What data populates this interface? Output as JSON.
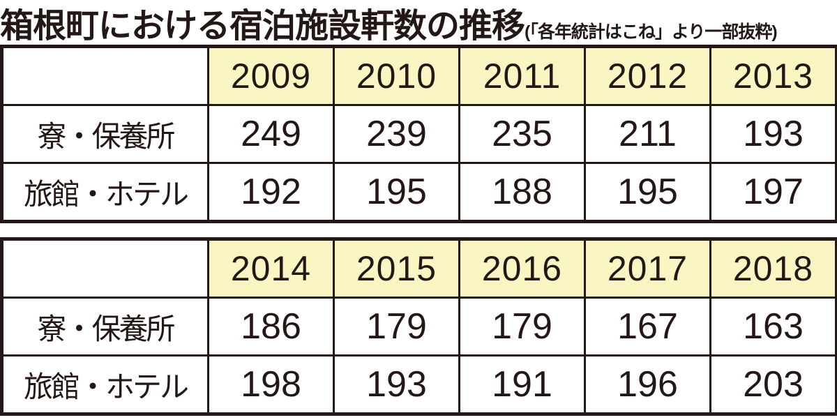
{
  "page": {
    "title": "箱根町における宿泊施設軒数の推移",
    "subtitle": "(「各年統計はこね」より一部抜粋)"
  },
  "colors": {
    "ink": "#231815",
    "header_bg": "#faf6c3",
    "cell_bg": "#ffffff"
  },
  "chart_data": [
    {
      "type": "table",
      "title": "箱根町における宿泊施設軒数の推移 2009-2013",
      "categories": [
        "2009",
        "2010",
        "2011",
        "2012",
        "2013"
      ],
      "series": [
        {
          "name": "寮・保養所",
          "values": [
            249,
            239,
            235,
            211,
            193
          ]
        },
        {
          "name": "旅館・ホテル",
          "values": [
            192,
            195,
            188,
            195,
            197
          ]
        }
      ]
    },
    {
      "type": "table",
      "title": "箱根町における宿泊施設軒数の推移 2014-2018",
      "categories": [
        "2014",
        "2015",
        "2016",
        "2017",
        "2018"
      ],
      "series": [
        {
          "name": "寮・保養所",
          "values": [
            186,
            179,
            179,
            167,
            163
          ]
        },
        {
          "name": "旅館・ホテル",
          "values": [
            198,
            193,
            191,
            196,
            203
          ]
        }
      ]
    }
  ]
}
